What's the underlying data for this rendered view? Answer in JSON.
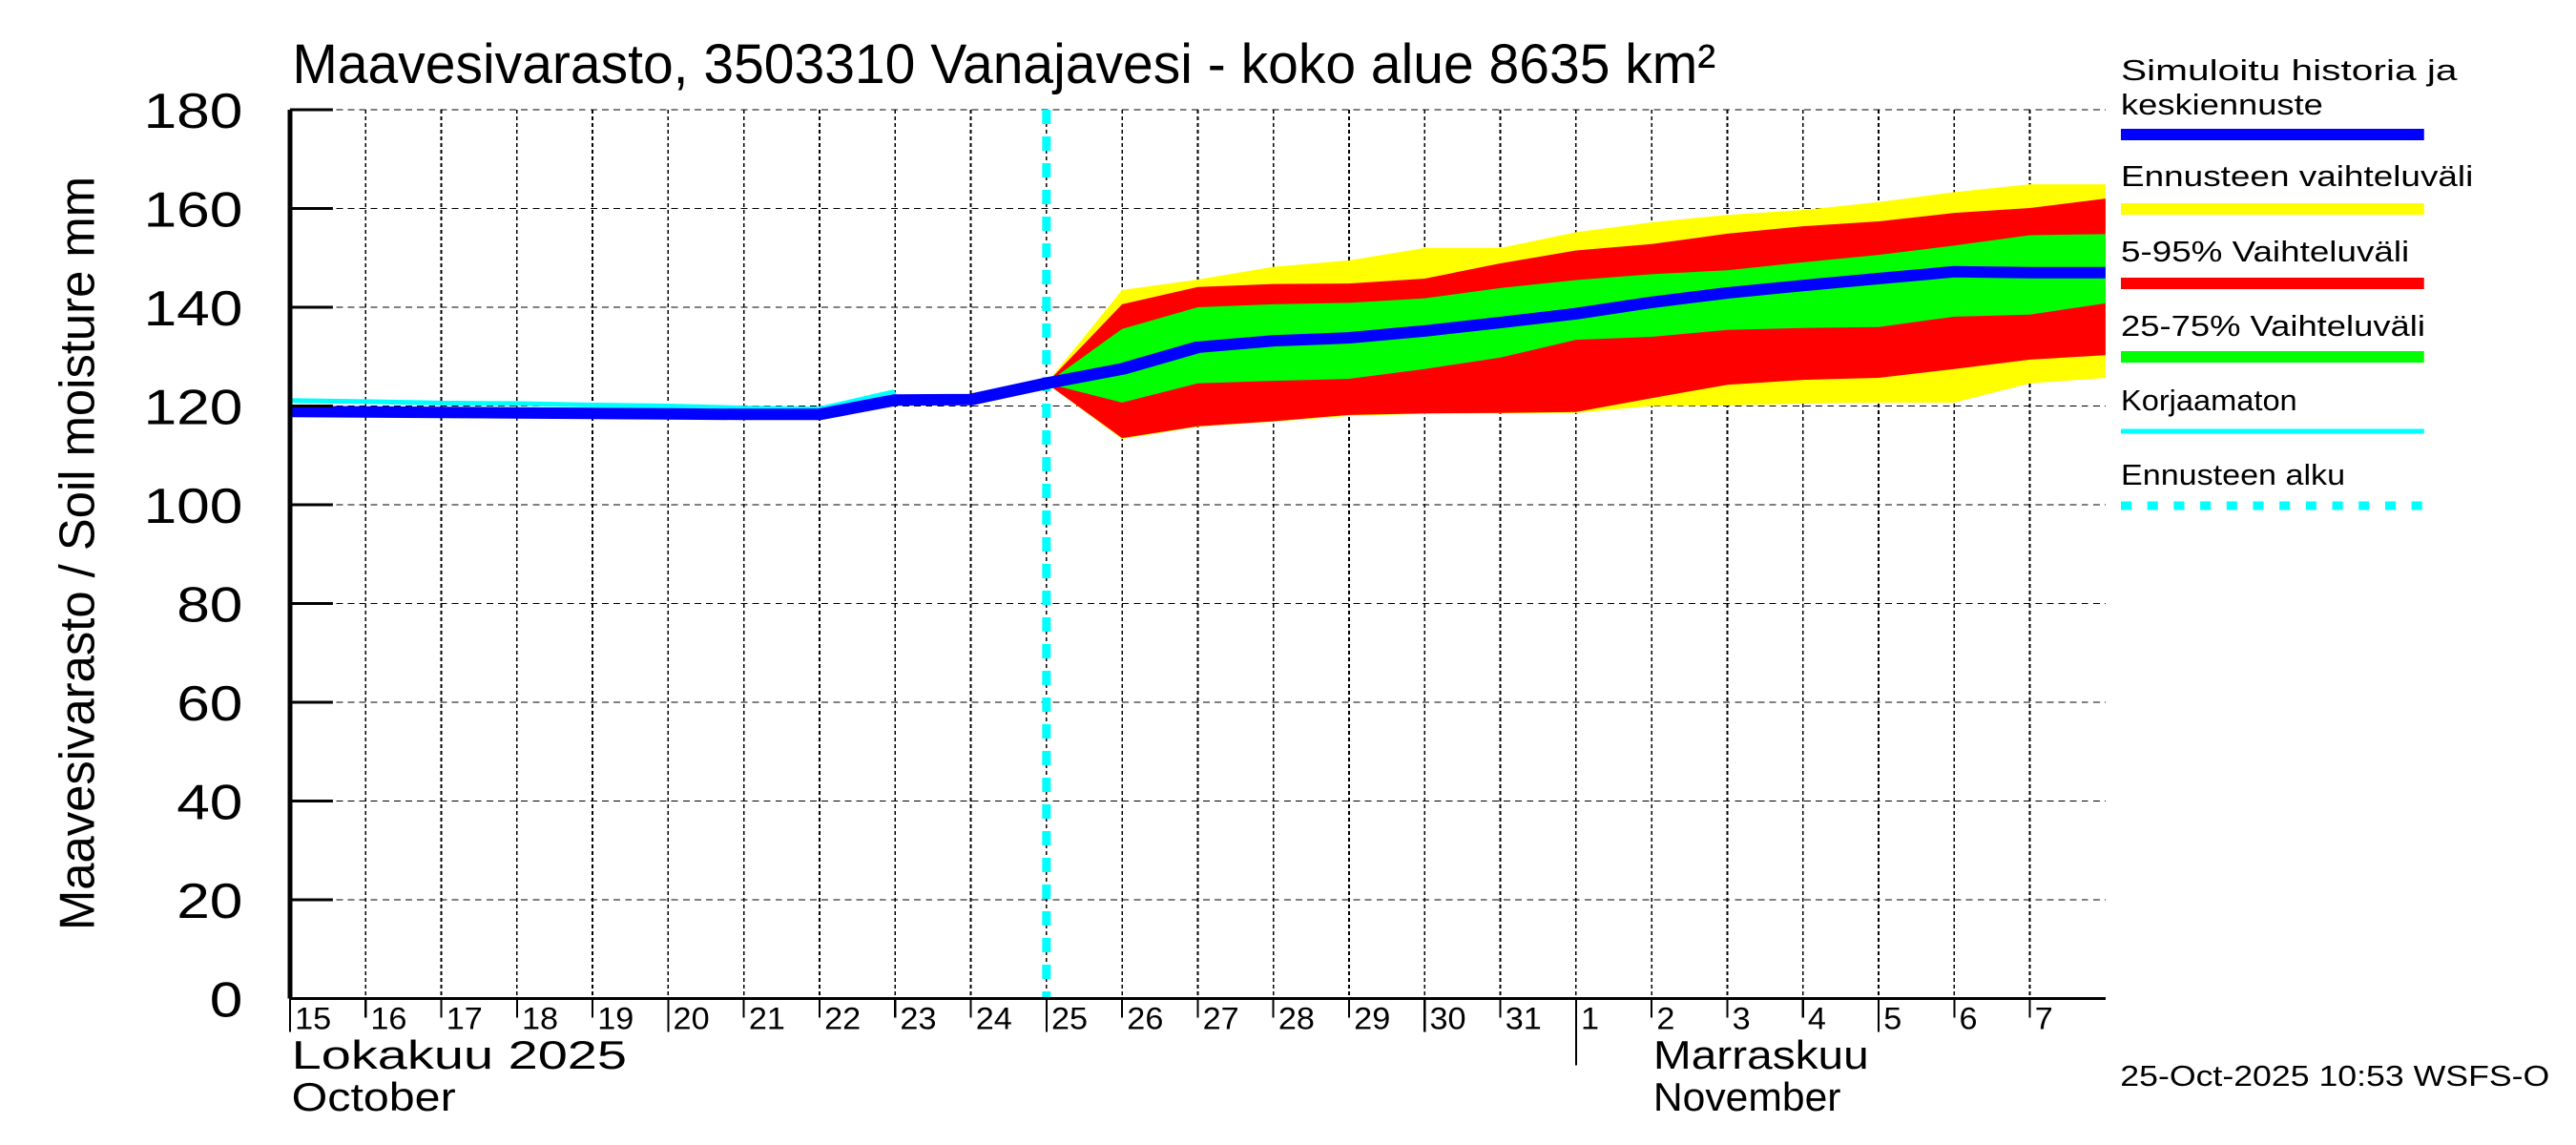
{
  "chart_data": {
    "type": "area",
    "title": "Maavesivarasto, 3503310 Vanajavesi - koko alue 8635 km²",
    "ylabel": "Maavesivarasto / Soil moisture   mm",
    "xlabel": "",
    "ylim": [
      0,
      180
    ],
    "yticks": [
      0,
      20,
      40,
      60,
      80,
      100,
      120,
      140,
      160,
      180
    ],
    "grid": true,
    "legend_position": "right",
    "x_tick_labels": [
      "15",
      "16",
      "17",
      "18",
      "19",
      "20",
      "21",
      "22",
      "23",
      "24",
      "25",
      "26",
      "27",
      "28",
      "29",
      "30",
      "31",
      "1",
      "2",
      "3",
      "4",
      "5",
      "6",
      "7"
    ],
    "x_start_day": "2025-10-15",
    "x_end_day": "2025-11-08",
    "month_labels": [
      {
        "line1": "Lokakuu   2025",
        "line2": "October",
        "at_day_index": 0
      },
      {
        "line1": "Marraskuu",
        "line2": "November",
        "at_day_index": 18
      }
    ],
    "month_boundary_day_index": 17,
    "forecast_start_day_index": 10,
    "x": [
      0,
      1,
      2,
      3,
      4,
      5,
      6,
      7,
      8,
      9,
      10,
      11,
      12,
      13,
      14,
      15,
      16,
      17,
      18,
      19,
      20,
      21,
      22,
      23,
      24
    ],
    "series": [
      {
        "name": "Korjaamaton",
        "kind": "line",
        "color": "#00ffff",
        "x": [
          0,
          1,
          2,
          3,
          4,
          5,
          6,
          7,
          8
        ],
        "values": [
          121.1,
          120.9,
          120.6,
          120.5,
          120.2,
          120.0,
          119.6,
          119.4,
          122.9
        ]
      },
      {
        "name": "Simuloitu historia ja keskiennuste",
        "kind": "line",
        "color": "#0000ff",
        "x": [
          0,
          1,
          2,
          3,
          4,
          5,
          6,
          7,
          8,
          9,
          10,
          11,
          12,
          13,
          14,
          15,
          16,
          17,
          18,
          19,
          20,
          21,
          22,
          23,
          24
        ],
        "values": [
          118.9,
          118.8,
          118.7,
          118.6,
          118.5,
          118.4,
          118.3,
          118.3,
          121.2,
          121.3,
          124.6,
          127.5,
          131.9,
          133.2,
          133.8,
          135.2,
          136.9,
          138.7,
          141.0,
          142.9,
          144.4,
          145.8,
          147.2,
          147.0,
          147.0
        ]
      },
      {
        "name": "Ennusteen vaihteluväli",
        "kind": "band",
        "color": "#ffff00",
        "x": [
          10,
          11,
          12,
          13,
          14,
          15,
          16,
          17,
          18,
          19,
          20,
          21,
          22,
          23,
          24
        ],
        "upper": [
          124.6,
          143.5,
          145.6,
          148.2,
          149.5,
          152.0,
          152.0,
          155.2,
          157.2,
          158.7,
          159.7,
          161.3,
          163.3,
          164.9,
          164.9
        ],
        "lower": [
          124.6,
          113.3,
          115.8,
          116.8,
          118.0,
          118.4,
          118.5,
          118.6,
          120.0,
          120.1,
          120.5,
          120.7,
          120.7,
          124.6,
          125.7
        ]
      },
      {
        "name": "5-95% Vaihteluväli",
        "kind": "band",
        "color": "#ff0000",
        "x": [
          10,
          11,
          12,
          13,
          14,
          15,
          16,
          17,
          18,
          19,
          20,
          21,
          22,
          23,
          24
        ],
        "upper": [
          124.6,
          140.6,
          144.1,
          144.7,
          144.8,
          145.8,
          148.9,
          151.5,
          152.8,
          154.9,
          156.4,
          157.4,
          159.1,
          160.1,
          162.0
        ],
        "lower": [
          124.6,
          113.5,
          115.9,
          116.9,
          118.2,
          118.5,
          118.6,
          118.8,
          121.6,
          124.3,
          125.3,
          125.7,
          127.5,
          129.4,
          130.3
        ]
      },
      {
        "name": "25-75% Vaihteluväli",
        "kind": "band",
        "color": "#00ff00",
        "x": [
          10,
          11,
          12,
          13,
          14,
          15,
          16,
          17,
          18,
          19,
          20,
          21,
          22,
          23,
          24
        ],
        "upper": [
          124.6,
          135.6,
          140.0,
          140.6,
          140.9,
          141.8,
          143.9,
          145.5,
          146.7,
          147.5,
          149.1,
          150.6,
          152.5,
          154.6,
          154.8
        ],
        "lower": [
          124.6,
          120.7,
          124.6,
          125.1,
          125.5,
          127.5,
          129.8,
          133.4,
          134.0,
          135.4,
          135.8,
          136.0,
          138.1,
          138.5,
          140.8
        ]
      },
      {
        "name": "Ennusteen alku",
        "kind": "vline",
        "color": "#00ffff",
        "x_day_index": 10
      }
    ]
  },
  "legend": {
    "items": [
      {
        "line1": "Simuloitu historia ja",
        "line2": "keskiennuste",
        "color": "#0000ff",
        "style": "solid-thick"
      },
      {
        "line1": "Ennusteen vaihteluväli",
        "line2": "",
        "color": "#ffff00",
        "style": "solid-thick"
      },
      {
        "line1": "5-95% Vaihteluväli",
        "line2": "",
        "color": "#ff0000",
        "style": "solid-thick"
      },
      {
        "line1": "25-75% Vaihteluväli",
        "line2": "",
        "color": "#00ff00",
        "style": "solid-thick"
      },
      {
        "line1": "Korjaamaton",
        "line2": "",
        "color": "#00ffff",
        "style": "solid-thin"
      },
      {
        "line1": "Ennusteen alku",
        "line2": "",
        "color": "#00ffff",
        "style": "dashed"
      }
    ]
  },
  "footer": {
    "timestamp": "25-Oct-2025 10:53 WSFS-O"
  }
}
